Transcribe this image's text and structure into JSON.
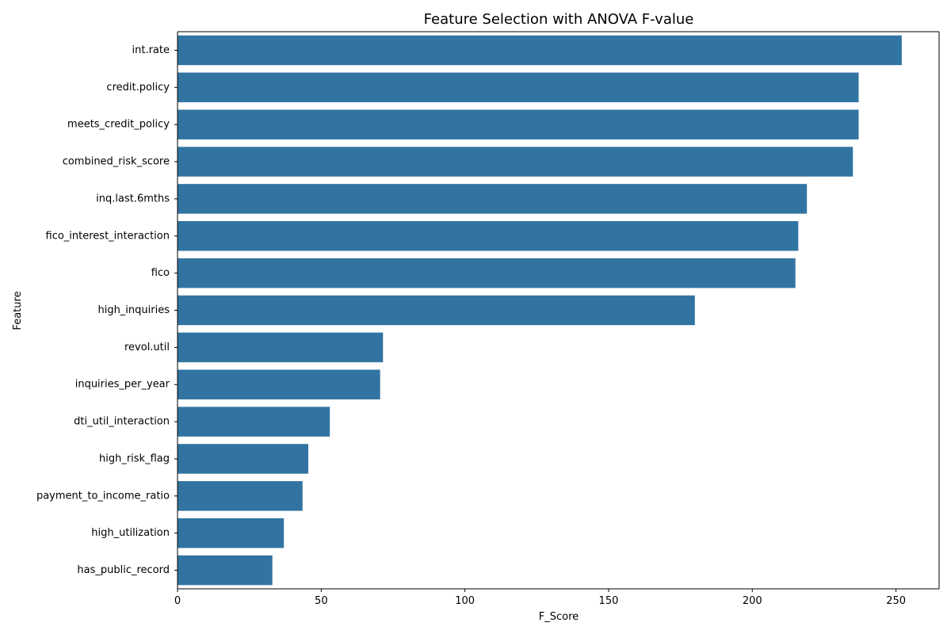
{
  "chart_data": {
    "type": "bar",
    "orientation": "horizontal",
    "title": "Feature Selection with ANOVA F-value",
    "xlabel": "F_Score",
    "ylabel": "Feature",
    "xlim": [
      0,
      265
    ],
    "xticks": [
      0,
      50,
      100,
      150,
      200,
      250
    ],
    "grid": false,
    "bar_color": "#3274a1",
    "categories": [
      "int.rate",
      "credit.policy",
      "meets_credit_policy",
      "combined_risk_score",
      "inq.last.6mths",
      "fico_interest_interaction",
      "fico",
      "high_inquiries",
      "revol.util",
      "inquiries_per_year",
      "dti_util_interaction",
      "high_risk_flag",
      "payment_to_income_ratio",
      "high_utilization",
      "has_public_record"
    ],
    "values": [
      252,
      237,
      237,
      235,
      219,
      216,
      215,
      180,
      71.5,
      70.5,
      53,
      45.5,
      43.5,
      37,
      33
    ]
  }
}
